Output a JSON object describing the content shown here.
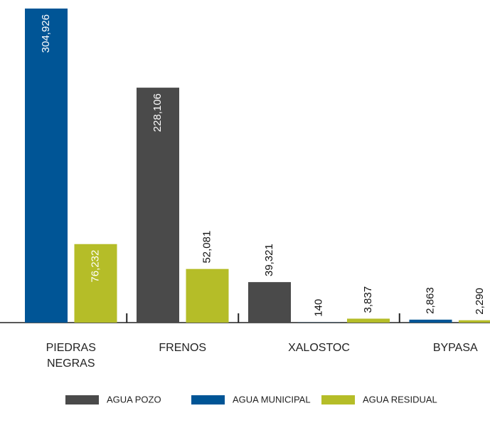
{
  "chart_data": {
    "type": "bar",
    "categories": [
      "PIEDRAS NEGRAS",
      "FRENOS",
      "XALOSTOC",
      "BYPASA"
    ],
    "series": [
      {
        "name": "AGUA POZO",
        "color": "#4a4a4a",
        "values": [
          null,
          228106,
          39321,
          null
        ],
        "value_labels": [
          null,
          "228,106",
          "39,321",
          null
        ]
      },
      {
        "name": "AGUA MUNICIPAL",
        "color": "#005596",
        "values": [
          304926,
          null,
          140,
          2863
        ],
        "value_labels": [
          "304,926",
          null,
          "140",
          "2,863"
        ]
      },
      {
        "name": "AGUA RESIDUAL",
        "color": "#b5bd28",
        "values": [
          76232,
          52081,
          3837,
          2290
        ],
        "value_labels": [
          "76,232",
          "52,081",
          "3,837",
          "2,290"
        ]
      }
    ]
  }
}
